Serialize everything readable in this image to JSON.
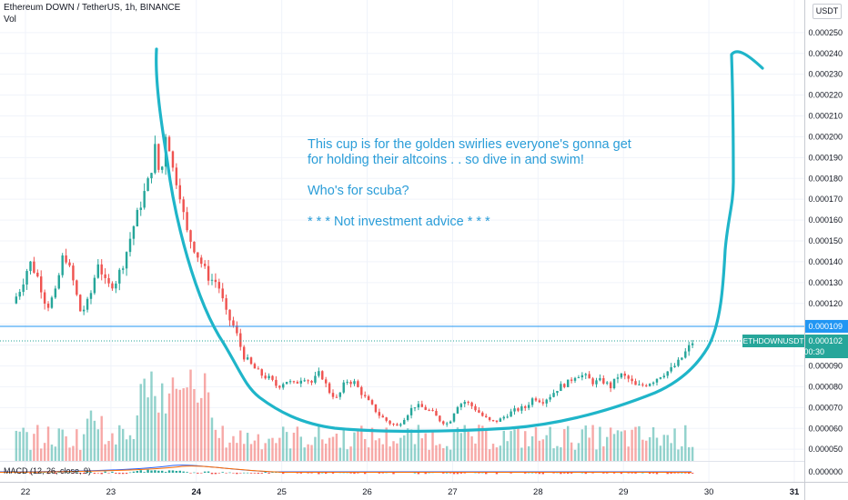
{
  "header": {
    "symbol_line": "Ethereum DOWN / TetherUS, 1h, BINANCE",
    "volume_label": "Vol",
    "currency_button": "USDT"
  },
  "indicator": {
    "macd_label": "MACD (12, 26, close, 9)"
  },
  "annotation": {
    "lines": [
      "This cup is for the golden swirlies everyone's gonna get",
      "for holding their altcoins . . so dive in and swim!",
      "",
      "Who's for scuba?",
      "",
      "* * * Not investment advice * * *"
    ],
    "color": "#2a9dd8"
  },
  "badges": {
    "line_price": "0.000109",
    "symbol": "ETHDOWNUSDT",
    "last_price": "0.000102",
    "countdown": "00:30"
  },
  "colors": {
    "up": "#26a69a",
    "down": "#ef5350",
    "drawing": "#1fb5c9",
    "price_line": "#2196f3"
  },
  "chart_data": {
    "type": "candlestick",
    "title": "Ethereum DOWN / TetherUS, 1h, BINANCE",
    "x_tick_labels": [
      "22",
      "23",
      "24",
      "25",
      "26",
      "27",
      "28",
      "29",
      "30",
      "31"
    ],
    "y_tick_labels": [
      "0.000250",
      "0.000240",
      "0.000230",
      "0.000220",
      "0.000210",
      "0.000200",
      "0.000190",
      "0.000180",
      "0.000170",
      "0.000160",
      "0.000150",
      "0.000140",
      "0.000130",
      "0.000120",
      "0.000110",
      "0.000100",
      "0.000090",
      "0.000080",
      "0.000070",
      "0.000060",
      "0.000050"
    ],
    "macd_tick_label": "0.000000",
    "ylim": [
      4.6e-05,
      0.000253
    ],
    "xlim": [
      21.85,
      31.2
    ],
    "horizontal_line": 0.000109,
    "last_price": 0.000102,
    "close_path": [
      [
        21.85,
        0.00012
      ],
      [
        21.95,
        0.000128
      ],
      [
        22.05,
        0.00014
      ],
      [
        22.15,
        0.000132
      ],
      [
        22.25,
        0.000118
      ],
      [
        22.35,
        0.000125
      ],
      [
        22.45,
        0.000145
      ],
      [
        22.55,
        0.000132
      ],
      [
        22.65,
        0.000115
      ],
      [
        22.75,
        0.000122
      ],
      [
        22.85,
        0.00014
      ],
      [
        22.95,
        0.000128
      ],
      [
        23.05,
        0.00013
      ],
      [
        23.15,
        0.00014
      ],
      [
        23.25,
        0.000155
      ],
      [
        23.35,
        0.000168
      ],
      [
        23.45,
        0.00018
      ],
      [
        23.52,
        0.000195
      ],
      [
        23.58,
        0.000178
      ],
      [
        23.65,
        0.000205
      ],
      [
        23.72,
        0.000185
      ],
      [
        23.8,
        0.000175
      ],
      [
        23.88,
        0.000155
      ],
      [
        23.96,
        0.000148
      ],
      [
        24.05,
        0.00014
      ],
      [
        24.15,
        0.000132
      ],
      [
        24.25,
        0.00013
      ],
      [
        24.35,
        0.000115
      ],
      [
        24.45,
        0.000108
      ],
      [
        24.55,
        9.5e-05
      ],
      [
        24.65,
        9e-05
      ],
      [
        24.75,
        8.6e-05
      ],
      [
        24.85,
        8.4e-05
      ],
      [
        24.95,
        8e-05
      ],
      [
        25.05,
        8.3e-05
      ],
      [
        25.15,
        8.1e-05
      ],
      [
        25.25,
        8.5e-05
      ],
      [
        25.35,
        8.2e-05
      ],
      [
        25.45,
        8.7e-05
      ],
      [
        25.55,
        7.8e-05
      ],
      [
        25.65,
        7.4e-05
      ],
      [
        25.75,
        8.3e-05
      ],
      [
        25.85,
        8.2e-05
      ],
      [
        25.95,
        7.6e-05
      ],
      [
        26.05,
        7.1e-05
      ],
      [
        26.15,
        6.6e-05
      ],
      [
        26.25,
        6.3e-05
      ],
      [
        26.35,
        6.1e-05
      ],
      [
        26.45,
        6.6e-05
      ],
      [
        26.55,
        7.1e-05
      ],
      [
        26.65,
        7e-05
      ],
      [
        26.75,
        6.8e-05
      ],
      [
        26.85,
        6.4e-05
      ],
      [
        26.95,
        6.2e-05
      ],
      [
        27.05,
        7.1e-05
      ],
      [
        27.15,
        7.3e-05
      ],
      [
        27.25,
        7e-05
      ],
      [
        27.35,
        6.6e-05
      ],
      [
        27.45,
        6.3e-05
      ],
      [
        27.55,
        6.4e-05
      ],
      [
        27.65,
        6.7e-05
      ],
      [
        27.75,
        6.9e-05
      ],
      [
        27.85,
        7e-05
      ],
      [
        27.95,
        7.5e-05
      ],
      [
        28.05,
        7.3e-05
      ],
      [
        28.15,
        7.6e-05
      ],
      [
        28.25,
        8e-05
      ],
      [
        28.35,
        8.2e-05
      ],
      [
        28.45,
        8.6e-05
      ],
      [
        28.55,
        8.5e-05
      ],
      [
        28.65,
        8.2e-05
      ],
      [
        28.75,
        8.3e-05
      ],
      [
        28.85,
        8e-05
      ],
      [
        28.95,
        8.6e-05
      ],
      [
        29.05,
        8.4e-05
      ],
      [
        29.15,
        8e-05
      ],
      [
        29.25,
        8.1e-05
      ],
      [
        29.35,
        8.3e-05
      ],
      [
        29.45,
        8.6e-05
      ],
      [
        29.55,
        8.8e-05
      ],
      [
        29.65,
        9.2e-05
      ],
      [
        29.75,
        9.8e-05
      ],
      [
        29.82,
        0.000102
      ]
    ]
  }
}
